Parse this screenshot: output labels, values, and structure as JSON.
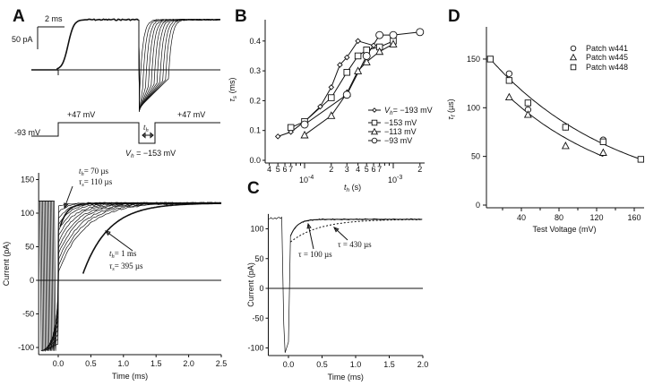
{
  "chart_data": [
    {
      "panel": "A",
      "type": "line",
      "scale_bar": {
        "time": "2 ms",
        "current": "50 pA"
      },
      "protocol": {
        "holding": "-93 mV",
        "step1": "+47 mV",
        "step2": "+47 mV",
        "interval_label": {
          "sym": "t",
          "sub": "h"
        },
        "hyperpol": {
          "sym": "V",
          "sub": "h",
          "rest": " = −153 mV"
        }
      }
    },
    {
      "panel": "A-lower",
      "type": "line",
      "xlabel": "Time (ms)",
      "ylabel": "Current (pA)",
      "xlim": [
        -0.3,
        2.5
      ],
      "ylim": [
        -110,
        160
      ],
      "xticks": [
        "0.0",
        "0.5",
        "1.0",
        "1.5",
        "2.0",
        "2.5"
      ],
      "xtick_values": [
        0,
        0.5,
        1,
        1.5,
        2,
        2.5
      ],
      "yticks": [
        "-100",
        "-50",
        "0",
        "50",
        "100",
        "150"
      ],
      "ytick_values": [
        -100,
        -50,
        0,
        50,
        100,
        150
      ],
      "plateau": 115,
      "fits": [
        {
          "th": {
            "sym": "t",
            "sub": "h",
            "rest": "= 70 µs"
          },
          "tau": {
            "sym": "τ",
            "sub": "s",
            "rest": "= 110 µs"
          },
          "tau_ms": 0.11
        },
        {
          "th": {
            "sym": "t",
            "sub": "h",
            "rest": "= 1 ms"
          },
          "tau": {
            "sym": "τ",
            "sub": "s",
            "rest": "= 395 µs"
          },
          "tau_ms": 0.395
        }
      ]
    },
    {
      "panel": "B",
      "type": "line",
      "xscale": "log",
      "xlabel": {
        "sym": "t",
        "sub": "h",
        "rest": " (s)"
      },
      "ylabel": {
        "sym": "τ",
        "sub": "s",
        "rest": " (ms)"
      },
      "xlim": [
        4e-05,
        0.002
      ],
      "ylim": [
        0,
        0.45
      ],
      "yticks": [
        "0.0",
        "0.1",
        "0.2",
        "0.3",
        "0.4"
      ],
      "ytick_values": [
        0,
        0.1,
        0.2,
        0.3,
        0.4
      ],
      "xticks_major": [
        {
          "base": "10",
          "exp": "-4",
          "value": 0.0001
        },
        {
          "base": "10",
          "exp": "-3",
          "value": 0.001
        }
      ],
      "xticks_minor": [
        {
          "t": "4",
          "v": 4e-05
        },
        {
          "t": "5",
          "v": 5e-05
        },
        {
          "t": "6",
          "v": 6e-05
        },
        {
          "t": "7",
          "v": 7e-05
        },
        {
          "t": "",
          "v": 8e-05
        },
        {
          "t": "",
          "v": 9e-05
        },
        {
          "t": "2",
          "v": 0.0002
        },
        {
          "t": "3",
          "v": 0.0003
        },
        {
          "t": "4",
          "v": 0.0004
        },
        {
          "t": "5",
          "v": 0.0005
        },
        {
          "t": "6",
          "v": 0.0006
        },
        {
          "t": "7",
          "v": 0.0007
        },
        {
          "t": "",
          "v": 0.0008
        },
        {
          "t": "",
          "v": 0.0009
        },
        {
          "t": "2",
          "v": 0.002
        }
      ],
      "legend_position": "right",
      "series": [
        {
          "name": "−193 mV",
          "name_prefix": {
            "sym": "V",
            "sub": "h",
            "rest": "= "
          },
          "marker": "diamond",
          "x": [
            5e-05,
            7e-05,
            0.0001,
            0.00015,
            0.0002,
            0.00025,
            0.0003,
            0.0004,
            0.0006
          ],
          "y": [
            0.08,
            0.095,
            0.13,
            0.18,
            0.245,
            0.32,
            0.345,
            0.4,
            0.385
          ]
        },
        {
          "name": "−153 mV",
          "marker": "square",
          "x": [
            7e-05,
            0.0001,
            0.0002,
            0.0003,
            0.0004,
            0.0005,
            0.0007,
            0.001
          ],
          "y": [
            0.11,
            0.13,
            0.21,
            0.295,
            0.35,
            0.37,
            0.38,
            0.4
          ]
        },
        {
          "name": "−113 mV",
          "marker": "triangle",
          "x": [
            0.0001,
            0.0002,
            0.0003,
            0.0004,
            0.0005,
            0.0007,
            0.001
          ],
          "y": [
            0.085,
            0.15,
            0.225,
            0.3,
            0.33,
            0.365,
            0.39
          ]
        },
        {
          "name": "−93 mV",
          "marker": "circle",
          "x": [
            0.0001,
            0.0003,
            0.0005,
            0.0007,
            0.001,
            0.002
          ],
          "y": [
            0.12,
            0.22,
            0.35,
            0.42,
            0.42,
            0.43
          ]
        }
      ]
    },
    {
      "panel": "C",
      "type": "line",
      "xlabel": "Time (ms)",
      "ylabel": "Current (pA)",
      "xlim": [
        -0.3,
        2.0
      ],
      "ylim": [
        -110,
        125
      ],
      "xticks": [
        "0.0",
        "0.5",
        "1.0",
        "1.5",
        "2.0"
      ],
      "xtick_values": [
        0,
        0.5,
        1,
        1.5,
        2
      ],
      "yticks": [
        "-100",
        "-50",
        "0",
        "50",
        "100"
      ],
      "ytick_values": [
        -100,
        -50,
        0,
        50,
        100
      ],
      "plateau": 116,
      "fits": [
        {
          "label": "τ = 100 µs",
          "tau_ms": 0.1,
          "style": "solid"
        },
        {
          "label": "τ = 430 µs",
          "tau_ms": 0.43,
          "style": "dashed"
        }
      ]
    },
    {
      "panel": "D",
      "type": "scatter",
      "xlabel": "Test Voltage (mV)",
      "ylabel": {
        "sym": "τ",
        "sub": "f",
        "rest": " (µs)"
      },
      "xlim": [
        3,
        172
      ],
      "ylim": [
        0,
        180
      ],
      "xticks": [
        "40",
        "80",
        "120",
        "160"
      ],
      "xtick_values": [
        40,
        80,
        120,
        160
      ],
      "xtick_minor": [
        20,
        60,
        100,
        140
      ],
      "yticks": [
        "0",
        "50",
        "100",
        "150"
      ],
      "ytick_values": [
        0,
        50,
        100,
        150
      ],
      "legend_position": "top-right",
      "series": [
        {
          "name": "Patch w441",
          "marker": "circle",
          "x": [
            27,
            47,
            87,
            127
          ],
          "y": [
            135,
            98,
            80,
            67
          ]
        },
        {
          "name": "Patch w445",
          "marker": "triangle",
          "x": [
            27,
            47,
            87,
            127
          ],
          "y": [
            111,
            93,
            61,
            54
          ]
        },
        {
          "name": "Patch w448",
          "marker": "square",
          "x": [
            7,
            27,
            47,
            87,
            127,
            167
          ],
          "y": [
            150,
            128,
            105,
            80,
            65,
            47
          ]
        }
      ],
      "fits": [
        {
          "x_range": [
            7,
            167
          ],
          "y_range": [
            150,
            47
          ],
          "style": "thick"
        },
        {
          "x_range": [
            27,
            127
          ],
          "y_range": [
            111,
            50
          ],
          "style": "thin"
        }
      ]
    }
  ],
  "panel_labels": [
    "A",
    "B",
    "C",
    "D"
  ]
}
